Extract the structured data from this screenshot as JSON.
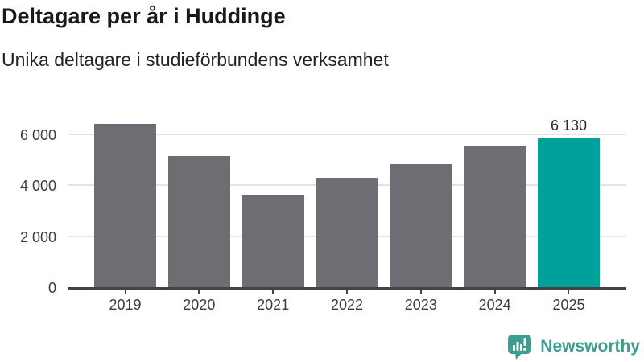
{
  "chart_data": {
    "type": "bar",
    "title": "Deltagare per år i Huddinge",
    "subtitle": "Unika deltagare i studieförbundens verksamhet",
    "xlabel": "",
    "ylabel": "",
    "categories": [
      "2019",
      "2020",
      "2021",
      "2022",
      "2023",
      "2024",
      "2025"
    ],
    "values": [
      6440,
      5190,
      3670,
      4320,
      4880,
      5580,
      6130
    ],
    "value_labels": {
      "6": "6 130"
    },
    "highlight_index": 6,
    "bar_color": "#6E6D73",
    "highlight_color": "#00A19A",
    "yticks": [
      0,
      2000,
      4000,
      6000
    ],
    "ytick_labels": [
      "0",
      "2 000",
      "4 000",
      "6 000"
    ],
    "ylim": [
      0,
      6700
    ],
    "grid": true,
    "legend": "none"
  },
  "footer": {
    "brand": "Newsworthy",
    "brand_color": "#3A9E90",
    "icon": "newsworthy-chart-bubble-icon"
  }
}
